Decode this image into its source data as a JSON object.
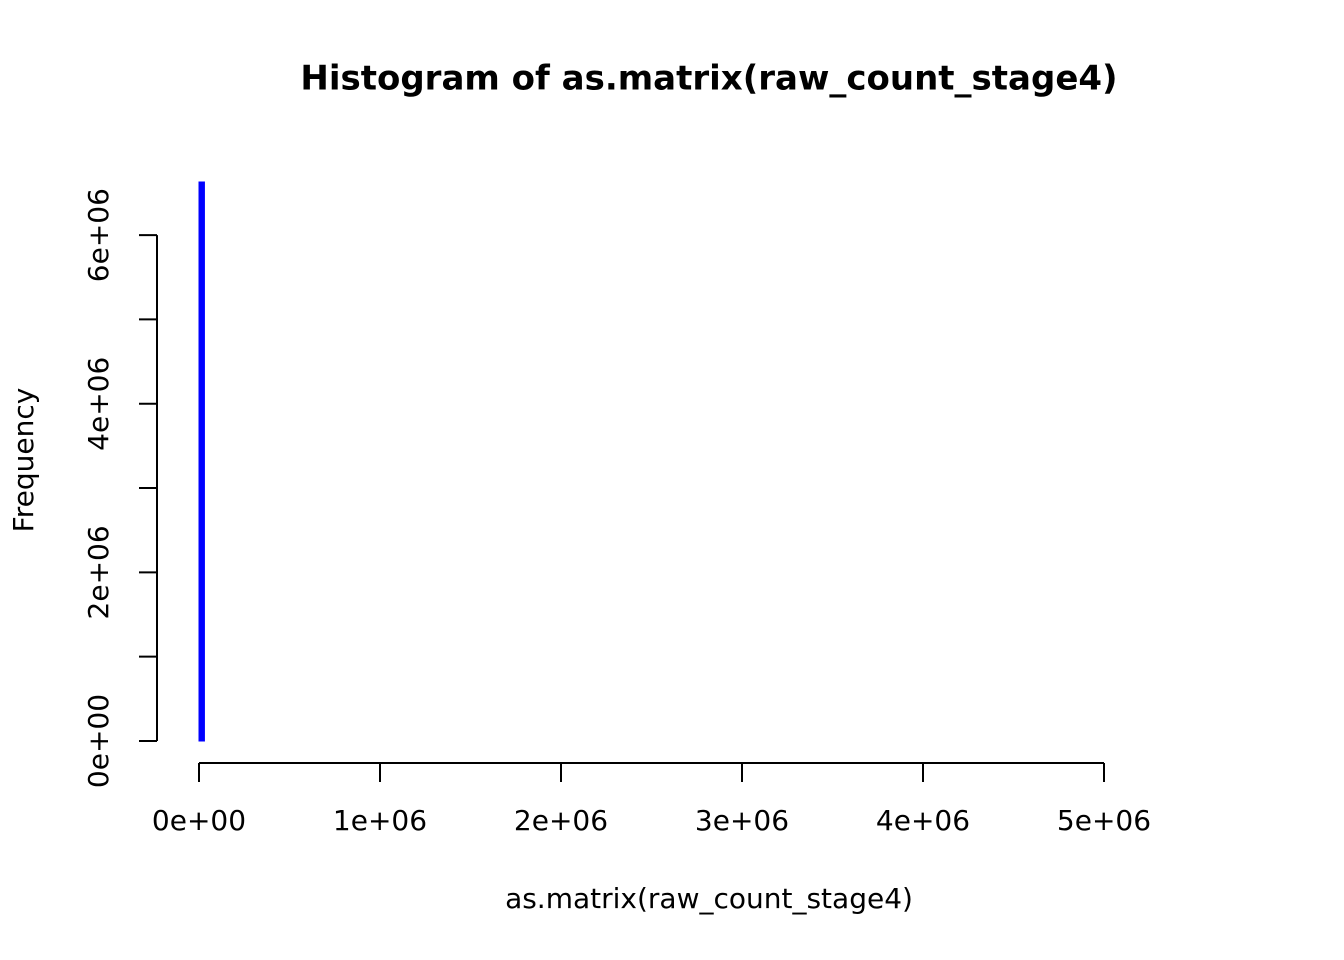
{
  "chart_data": {
    "type": "histogram",
    "title": "Histogram of as.matrix(raw_count_stage4)",
    "x_label": "as.matrix(raw_count_stage4)",
    "y_label": "Frequency",
    "bins": [
      0,
      30000
    ],
    "counts": [
      6630000
    ],
    "color": "#0000ff",
    "xlim": [
      0,
      5000000
    ],
    "ylim": [
      0,
      6630000
    ],
    "xticks": [
      {
        "value": 0,
        "label": "0e+00"
      },
      {
        "value": 1000000,
        "label": "1e+06"
      },
      {
        "value": 2000000,
        "label": "2e+06"
      },
      {
        "value": 3000000,
        "label": "3e+06"
      },
      {
        "value": 4000000,
        "label": "4e+06"
      },
      {
        "value": 5000000,
        "label": "5e+06"
      }
    ],
    "yticks": [
      {
        "value": 0,
        "label": "0e+00"
      },
      {
        "value": 2000000,
        "label": "2e+06"
      },
      {
        "value": 4000000,
        "label": "4e+06"
      },
      {
        "value": 6000000,
        "label": "6e+06"
      }
    ],
    "yminorticks": [
      1000000,
      3000000,
      5000000
    ]
  }
}
